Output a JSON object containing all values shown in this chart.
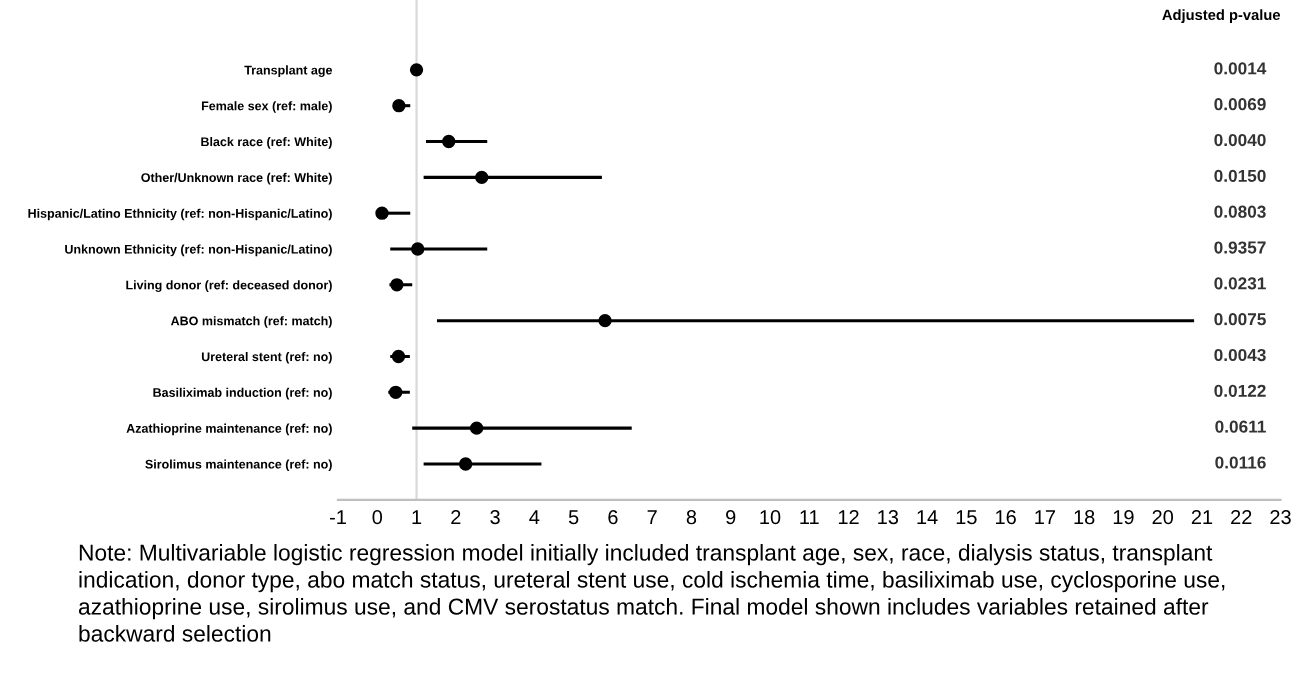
{
  "chart_data": {
    "type": "scatter",
    "orientation": "horizontal",
    "categories": [
      "Transplant age",
      "Female sex (ref: male)",
      "Black race (ref: White)",
      "Other/Unknown race (ref: White)",
      "Hispanic/Latino Ethnicity (ref: non-Hispanic/Latino)",
      "Unknown Ethnicity (ref: non-Hispanic/Latino)",
      "Living donor (ref: deceased donor)",
      "ABO mismatch (ref: match)",
      "Ureteral stent (ref: no)",
      "Basiliximab induction (ref: no)",
      "Azathioprine maintenance (ref: no)",
      "Sirolimus maintenance (ref: no)"
    ],
    "series": [
      {
        "color": "#000000",
        "values": [
          1.0,
          0.55,
          1.82,
          2.66,
          0.12,
          1.03,
          0.5,
          5.8,
          0.54,
          0.47,
          2.53,
          2.25
        ],
        "errors": [
          null,
          [
            0.41,
            0.84
          ],
          [
            1.24,
            2.8
          ],
          [
            1.18,
            5.72
          ],
          [
            0.1,
            0.84
          ],
          [
            0.33,
            2.8
          ],
          [
            0.31,
            0.89
          ],
          [
            1.52,
            20.8
          ],
          [
            0.33,
            0.83
          ],
          [
            0.28,
            0.83
          ],
          [
            0.89,
            6.48
          ],
          [
            1.18,
            4.18
          ]
        ]
      }
    ],
    "y2label": "Adjusted p-value",
    "y2_categories": [
      "0.0014",
      "0.0069",
      "0.0040",
      "0.0150",
      "0.0803",
      "0.9357",
      "0.0231",
      "0.0075",
      "0.0043",
      "0.0122",
      "0.0611",
      "0.0116"
    ],
    "xlim": [
      -1,
      23
    ],
    "xticks": [
      -1,
      0,
      1,
      2,
      3,
      4,
      5,
      6,
      7,
      8,
      9,
      10,
      11,
      12,
      13,
      14,
      15,
      16,
      17,
      18,
      19,
      20,
      21,
      22,
      23
    ],
    "ref_lines": [
      {
        "axis": "x",
        "value": 1,
        "color": "#d9d9d9"
      }
    ],
    "marker": "circle",
    "grid": false,
    "legend": false,
    "annotations": [
      "Note: Multivariable logistic regression model initially included transplant age, sex, race, dialysis status, transplant indication, donor type, abo match status, ureteral stent use, cold ischemia time, basiliximab use, cyclosporine use, azathioprine use, sirolimus use, and CMV serostatus match. Final model shown includes variables retained after backward selection"
    ]
  }
}
